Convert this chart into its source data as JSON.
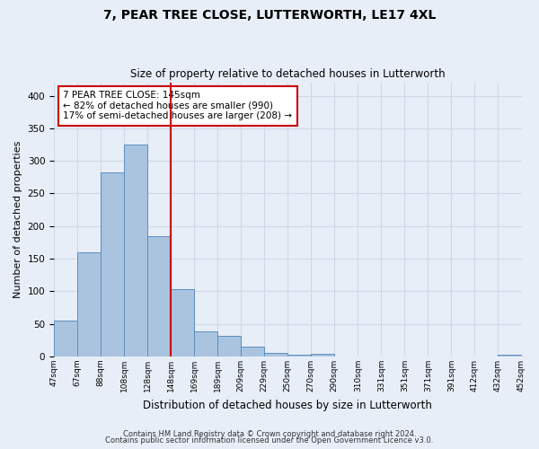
{
  "title": "7, PEAR TREE CLOSE, LUTTERWORTH, LE17 4XL",
  "subtitle": "Size of property relative to detached houses in Lutterworth",
  "xlabel": "Distribution of detached houses by size in Lutterworth",
  "ylabel": "Number of detached properties",
  "bar_values": [
    55,
    160,
    283,
    325,
    185,
    103,
    39,
    32,
    15,
    6,
    3,
    4,
    0,
    0,
    0,
    0,
    0,
    0,
    0,
    3
  ],
  "bar_labels": [
    "47sqm",
    "67sqm",
    "88sqm",
    "108sqm",
    "128sqm",
    "148sqm",
    "169sqm",
    "189sqm",
    "209sqm",
    "229sqm",
    "250sqm",
    "270sqm",
    "290sqm",
    "310sqm",
    "331sqm",
    "351sqm",
    "371sqm",
    "391sqm",
    "412sqm",
    "432sqm",
    "452sqm"
  ],
  "bar_color": "#aac4e0",
  "bar_edge_color": "#5a8fc0",
  "highlight_index": 5,
  "highlight_color": "#cc0000",
  "annotation_line1": "7 PEAR TREE CLOSE: 145sqm",
  "annotation_line2": "← 82% of detached houses are smaller (990)",
  "annotation_line3": "17% of semi-detached houses are larger (208) →",
  "annotation_box_color": "#ffffff",
  "annotation_box_edge": "#cc0000",
  "ylim": [
    0,
    420
  ],
  "yticks": [
    0,
    50,
    100,
    150,
    200,
    250,
    300,
    350,
    400
  ],
  "grid_color": "#d0d8e8",
  "bg_color": "#e8eef8",
  "footer1": "Contains HM Land Registry data © Crown copyright and database right 2024.",
  "footer2": "Contains public sector information licensed under the Open Government Licence v3.0."
}
